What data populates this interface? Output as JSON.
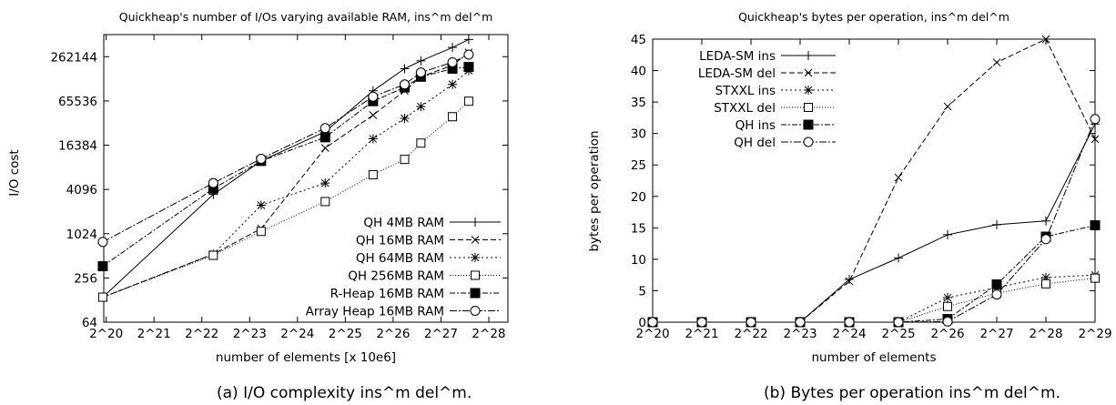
{
  "captions": {
    "a": "(a) I/O complexity ins^m del^m.",
    "b": "(b) Bytes per operation ins^m del^m."
  },
  "chart_data": [
    {
      "type": "line",
      "title": "Quickheap's number of I/Os varying available RAM, ins^m del^m",
      "xlabel": "number of elements [x 10e6]",
      "ylabel": "I/O cost",
      "x_scale": "log2",
      "y_scale": "log2",
      "xlim": [
        19.95,
        28.4
      ],
      "ylim": [
        64,
        524288
      ],
      "x_ticks": [
        20,
        21,
        22,
        23,
        24,
        25,
        26,
        27,
        28
      ],
      "x_tick_labels": [
        "2^20",
        "2^21",
        "2^22",
        "2^23",
        "2^24",
        "2^25",
        "2^26",
        "2^27",
        "2^28"
      ],
      "y_ticks": [
        64,
        256,
        1024,
        4096,
        16384,
        65536,
        262144
      ],
      "y_tick_labels": [
        "64",
        "256",
        "1024",
        "4096",
        "16384",
        "65536",
        "262144"
      ],
      "grid": false,
      "legend_position": "bottom-right",
      "series": [
        {
          "name": "QH 4MB RAM",
          "marker": "plus",
          "dash": "",
          "x": [
            19.93,
            22.24,
            23.24,
            24.58,
            25.58,
            26.24,
            26.58,
            27.24,
            27.58
          ],
          "y": [
            140,
            3500,
            10000,
            25000,
            90000,
            180000,
            230000,
            350000,
            450000
          ]
        },
        {
          "name": "QH 16MB RAM",
          "marker": "cross",
          "dash": "6,3",
          "x": [
            19.93,
            22.24,
            23.24,
            24.58,
            25.58,
            26.24,
            26.58,
            27.24,
            27.58
          ],
          "y": [
            140,
            540,
            1200,
            15000,
            42000,
            90000,
            140000,
            200000,
            300000
          ]
        },
        {
          "name": "QH 64MB RAM",
          "marker": "star",
          "dash": "2,3",
          "x": [
            19.93,
            22.24,
            23.24,
            24.58,
            25.58,
            26.24,
            26.58,
            27.24,
            27.58
          ],
          "y": [
            140,
            540,
            2500,
            5000,
            20000,
            38000,
            55000,
            110000,
            170000
          ]
        },
        {
          "name": "QH 256MB RAM",
          "marker": "square",
          "dash": "1,2",
          "x": [
            19.93,
            22.24,
            23.24,
            24.58,
            25.58,
            26.24,
            26.58,
            27.24,
            27.58
          ],
          "y": [
            140,
            520,
            1100,
            2800,
            6500,
            10500,
            17500,
            40000,
            65000
          ]
        },
        {
          "name": "R-Heap 16MB RAM",
          "marker": "filled-square",
          "dash": "6,2,2,2",
          "x": [
            19.93,
            22.24,
            23.24,
            24.58,
            25.58,
            26.24,
            26.58,
            27.24,
            27.58
          ],
          "y": [
            370,
            4200,
            10000,
            21000,
            65000,
            100000,
            140000,
            180000,
            190000
          ]
        },
        {
          "name": "Array Heap 16MB RAM",
          "marker": "circle",
          "dash": "8,2,2,2",
          "x": [
            19.93,
            22.24,
            23.24,
            24.58,
            25.58,
            26.24,
            26.58,
            27.24,
            27.58
          ],
          "y": [
            790,
            5000,
            10700,
            28000,
            75000,
            110000,
            160000,
            220000,
            280000
          ]
        }
      ]
    },
    {
      "type": "line",
      "title": "Quickheap's bytes per operation, ins^m del^m",
      "xlabel": "number of elements",
      "ylabel": "bytes per operation",
      "x_scale": "log2",
      "y_scale": "linear",
      "xlim": [
        20,
        29
      ],
      "ylim": [
        0,
        45
      ],
      "x_ticks": [
        20,
        21,
        22,
        23,
        24,
        25,
        26,
        27,
        28,
        29
      ],
      "x_tick_labels": [
        "2^20",
        "2^21",
        "2^22",
        "2^23",
        "2^24",
        "2^25",
        "2^26",
        "2^27",
        "2^28",
        "2^29"
      ],
      "y_ticks": [
        0,
        5,
        10,
        15,
        20,
        25,
        30,
        35,
        40,
        45
      ],
      "y_tick_labels": [
        "0",
        "5",
        "10",
        "15",
        "20",
        "25",
        "30",
        "35",
        "40",
        "45"
      ],
      "grid": false,
      "legend_position": "top-left",
      "series": [
        {
          "name": "LEDA-SM ins",
          "marker": "plus",
          "dash": "",
          "x": [
            20,
            21,
            22,
            23,
            24,
            25,
            26,
            27,
            28,
            29
          ],
          "y": [
            0,
            0,
            0,
            0,
            6.8,
            10.2,
            13.9,
            15.5,
            16.1,
            31.5
          ]
        },
        {
          "name": "LEDA-SM del",
          "marker": "cross",
          "dash": "6,3",
          "x": [
            20,
            21,
            22,
            23,
            24,
            25,
            26,
            27,
            28,
            29
          ],
          "y": [
            0,
            0,
            0,
            0,
            6.5,
            23.0,
            34.3,
            41.3,
            45.0,
            29.1
          ]
        },
        {
          "name": "STXXL ins",
          "marker": "star",
          "dash": "2,3",
          "x": [
            20,
            21,
            22,
            23,
            24,
            25,
            26,
            27,
            28,
            29
          ],
          "y": [
            0,
            0,
            0,
            0,
            0,
            0,
            3.9,
            5.5,
            7.1,
            7.5
          ]
        },
        {
          "name": "STXXL del",
          "marker": "square",
          "dash": "1,2",
          "x": [
            20,
            21,
            22,
            23,
            24,
            25,
            26,
            27,
            28,
            29
          ],
          "y": [
            0,
            0,
            0,
            0,
            0,
            0,
            2.5,
            4.6,
            6.1,
            7.0
          ]
        },
        {
          "name": "QH ins",
          "marker": "filled-square",
          "dash": "6,2,2,2",
          "x": [
            20,
            21,
            22,
            23,
            24,
            25,
            26,
            27,
            28,
            29
          ],
          "y": [
            0,
            0,
            0,
            0,
            0,
            0,
            0.5,
            6.0,
            13.6,
            15.4
          ]
        },
        {
          "name": "QH del",
          "marker": "circle",
          "dash": "8,2,2,2",
          "x": [
            20,
            21,
            22,
            23,
            24,
            25,
            26,
            27,
            28,
            29
          ],
          "y": [
            0,
            0,
            0,
            0,
            0,
            0,
            0.1,
            4.4,
            13.2,
            32.3
          ]
        }
      ]
    }
  ]
}
